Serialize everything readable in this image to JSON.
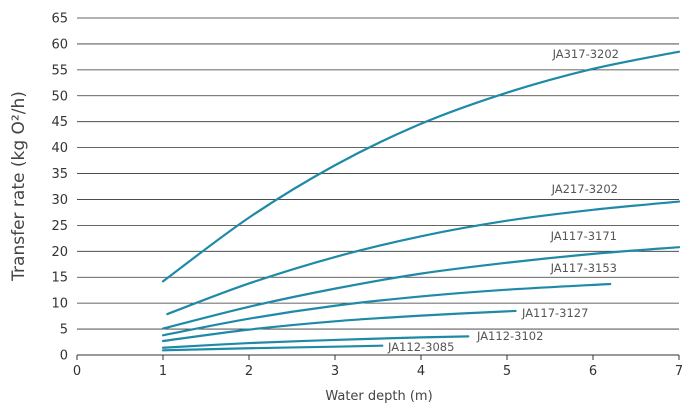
{
  "chart_data": {
    "type": "line",
    "title": "",
    "xlabel": "Water depth (m)",
    "ylabel": "Transfer rate (kg O²/h)",
    "xlim": [
      0,
      7
    ],
    "ylim": [
      0,
      65
    ],
    "x_ticks": [
      "0",
      "1",
      "2",
      "3",
      "4",
      "5",
      "6",
      "7"
    ],
    "y_ticks": [
      "0",
      "5",
      "10",
      "15",
      "20",
      "25",
      "30",
      "35",
      "40",
      "45",
      "50",
      "55",
      "60",
      "65"
    ],
    "grid": "horizontal",
    "line_color": "#1f8aa8",
    "series": [
      {
        "name": "JA317-3202",
        "points": [
          [
            1.0,
            14.2
          ],
          [
            2.0,
            26.5
          ],
          [
            3.0,
            36.6
          ],
          [
            4.0,
            44.6
          ],
          [
            5.0,
            50.6
          ],
          [
            6.0,
            55.2
          ],
          [
            7.0,
            58.5
          ]
        ]
      },
      {
        "name": "JA217-3202",
        "points": [
          [
            1.05,
            7.9
          ],
          [
            2.0,
            13.8
          ],
          [
            3.0,
            18.9
          ],
          [
            4.0,
            22.9
          ],
          [
            5.0,
            25.9
          ],
          [
            6.0,
            28.0
          ],
          [
            7.0,
            29.6
          ]
        ]
      },
      {
        "name": "JA117-3171",
        "points": [
          [
            1.0,
            5.1
          ],
          [
            2.0,
            9.3
          ],
          [
            3.0,
            12.8
          ],
          [
            4.0,
            15.7
          ],
          [
            5.0,
            17.8
          ],
          [
            6.0,
            19.5
          ],
          [
            7.0,
            20.8
          ]
        ]
      },
      {
        "name": "JA117-3153",
        "points": [
          [
            1.0,
            3.8
          ],
          [
            2.0,
            7.0
          ],
          [
            3.0,
            9.5
          ],
          [
            4.0,
            11.3
          ],
          [
            5.0,
            12.6
          ],
          [
            6.2,
            13.7
          ]
        ]
      },
      {
        "name": "JA117-3127",
        "points": [
          [
            1.0,
            2.7
          ],
          [
            2.0,
            4.9
          ],
          [
            3.0,
            6.5
          ],
          [
            4.0,
            7.6
          ],
          [
            5.1,
            8.5
          ]
        ]
      },
      {
        "name": "JA112-3102",
        "points": [
          [
            1.0,
            1.4
          ],
          [
            2.0,
            2.3
          ],
          [
            3.0,
            2.9
          ],
          [
            4.0,
            3.4
          ],
          [
            4.55,
            3.6
          ]
        ]
      },
      {
        "name": "JA112-3085",
        "points": [
          [
            1.0,
            0.9
          ],
          [
            2.0,
            1.3
          ],
          [
            3.0,
            1.6
          ],
          [
            3.55,
            1.8
          ]
        ]
      }
    ]
  }
}
